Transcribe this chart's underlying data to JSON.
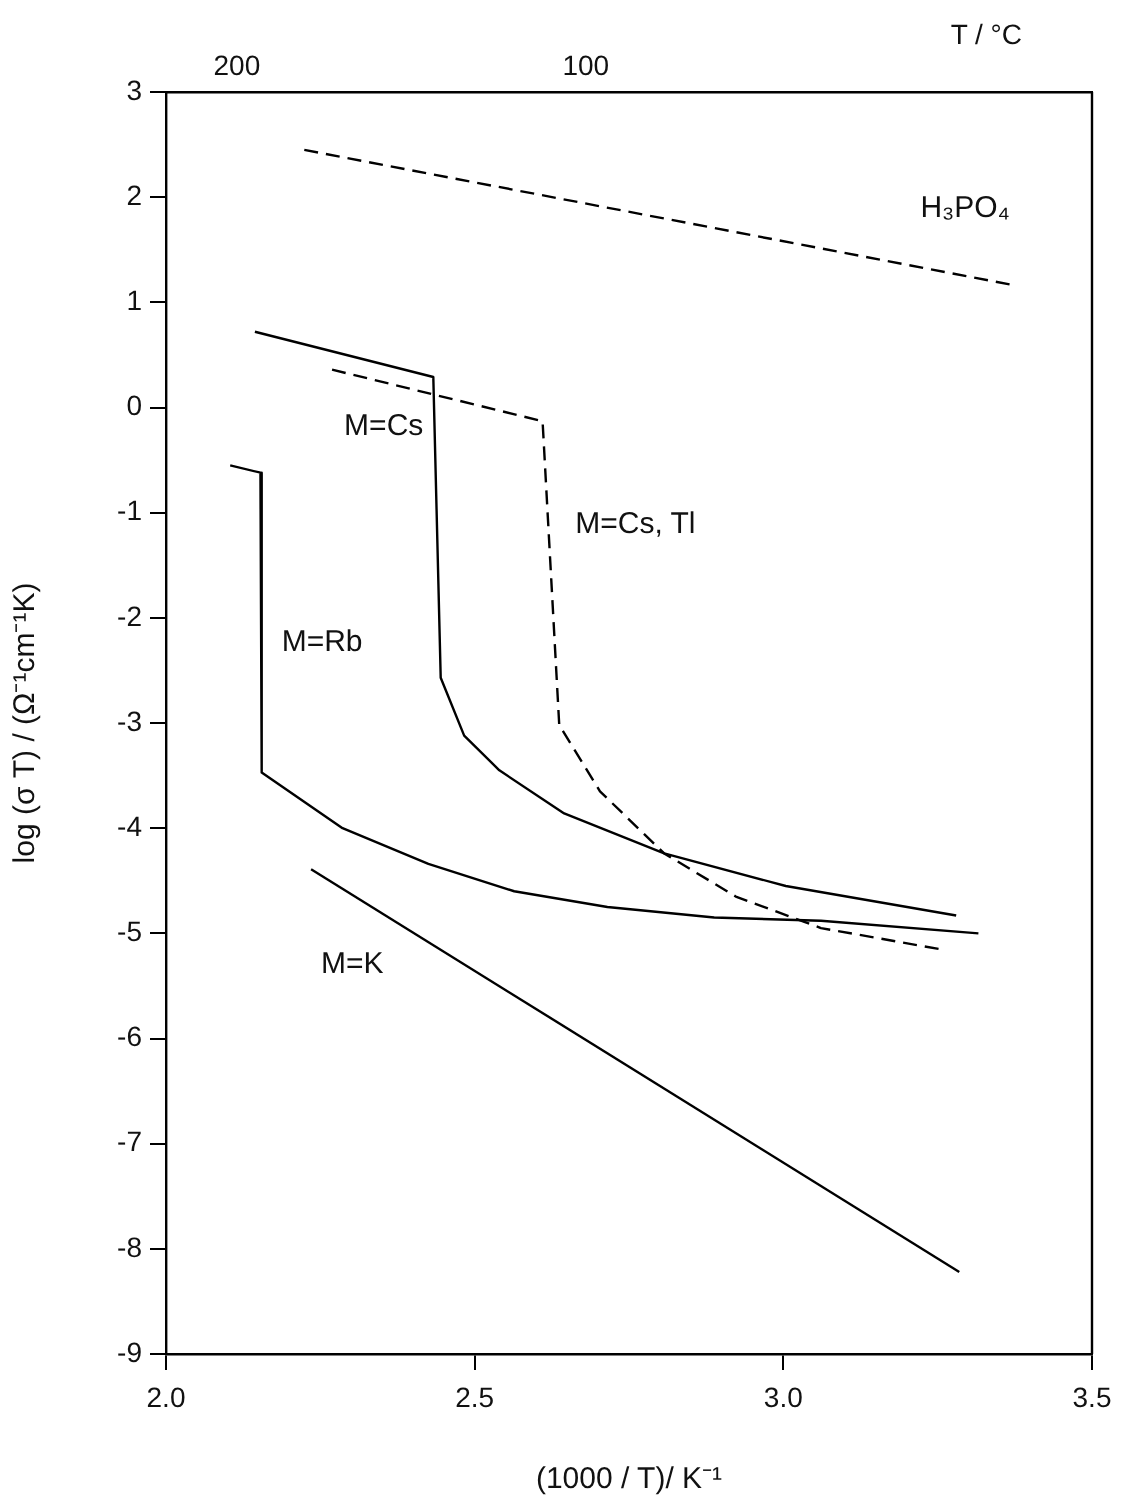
{
  "chart_data": {
    "type": "line",
    "xlabel": "(1000 / T)/ K⁻¹",
    "ylabel": "log (σ T) / (Ω⁻¹cm⁻¹K)",
    "x2label": "T / °C",
    "xlim": [
      2.0,
      3.5
    ],
    "xticks": [
      {
        "value": 2.0,
        "label": "2.0"
      },
      {
        "value": 2.5,
        "label": "2.5"
      },
      {
        "value": 3.0,
        "label": "3.0"
      },
      {
        "value": 3.5,
        "label": "3.5"
      }
    ],
    "x2lim": [
      220.3,
      -45.09
    ],
    "x2ticks": [
      200,
      100
    ],
    "ylim": [
      -9,
      3
    ],
    "yticks": [
      -9,
      -8,
      -7,
      -6,
      -5,
      -4,
      -3,
      -2,
      -1,
      0,
      1,
      2,
      3
    ],
    "grid": false,
    "legend": false,
    "marker": "none",
    "series": [
      {
        "name": "H₃PO₄",
        "color": "#000000",
        "line_style": "dashed",
        "x": [
          2.224,
          3.367
        ],
        "values": [
          2.45,
          1.17
        ]
      },
      {
        "name": "M=Cs",
        "color": "#000000",
        "line_style": "solid",
        "x": [
          2.144,
          2.433,
          2.445,
          2.483,
          2.54,
          2.645,
          2.807,
          3.004,
          3.28
        ],
        "values": [
          0.72,
          0.29,
          -2.57,
          -3.12,
          -3.45,
          -3.86,
          -4.24,
          -4.55,
          -4.83
        ]
      },
      {
        "name": "M=Cs, Tl",
        "color": "#000000",
        "line_style": "dashed",
        "x": [
          2.269,
          2.61,
          2.637,
          2.703,
          2.807,
          2.923,
          3.061,
          3.263
        ],
        "values": [
          0.36,
          -0.13,
          -3.02,
          -3.65,
          -4.24,
          -4.65,
          -4.95,
          -5.16
        ]
      },
      {
        "name": "M=Rb",
        "color": "#000000",
        "line_style": "solid",
        "x": [
          2.104,
          2.153,
          2.155,
          2.286,
          2.425,
          2.564,
          2.715,
          2.888,
          3.061,
          3.316
        ],
        "values": [
          -0.55,
          -0.62,
          -3.47,
          -4.0,
          -4.34,
          -4.6,
          -4.75,
          -4.85,
          -4.88,
          -5.0
        ]
      },
      {
        "name": "M=K",
        "color": "#000000",
        "line_style": "solid",
        "x": [
          2.235,
          3.285
        ],
        "values": [
          -4.39,
          -8.22
        ]
      }
    ]
  }
}
